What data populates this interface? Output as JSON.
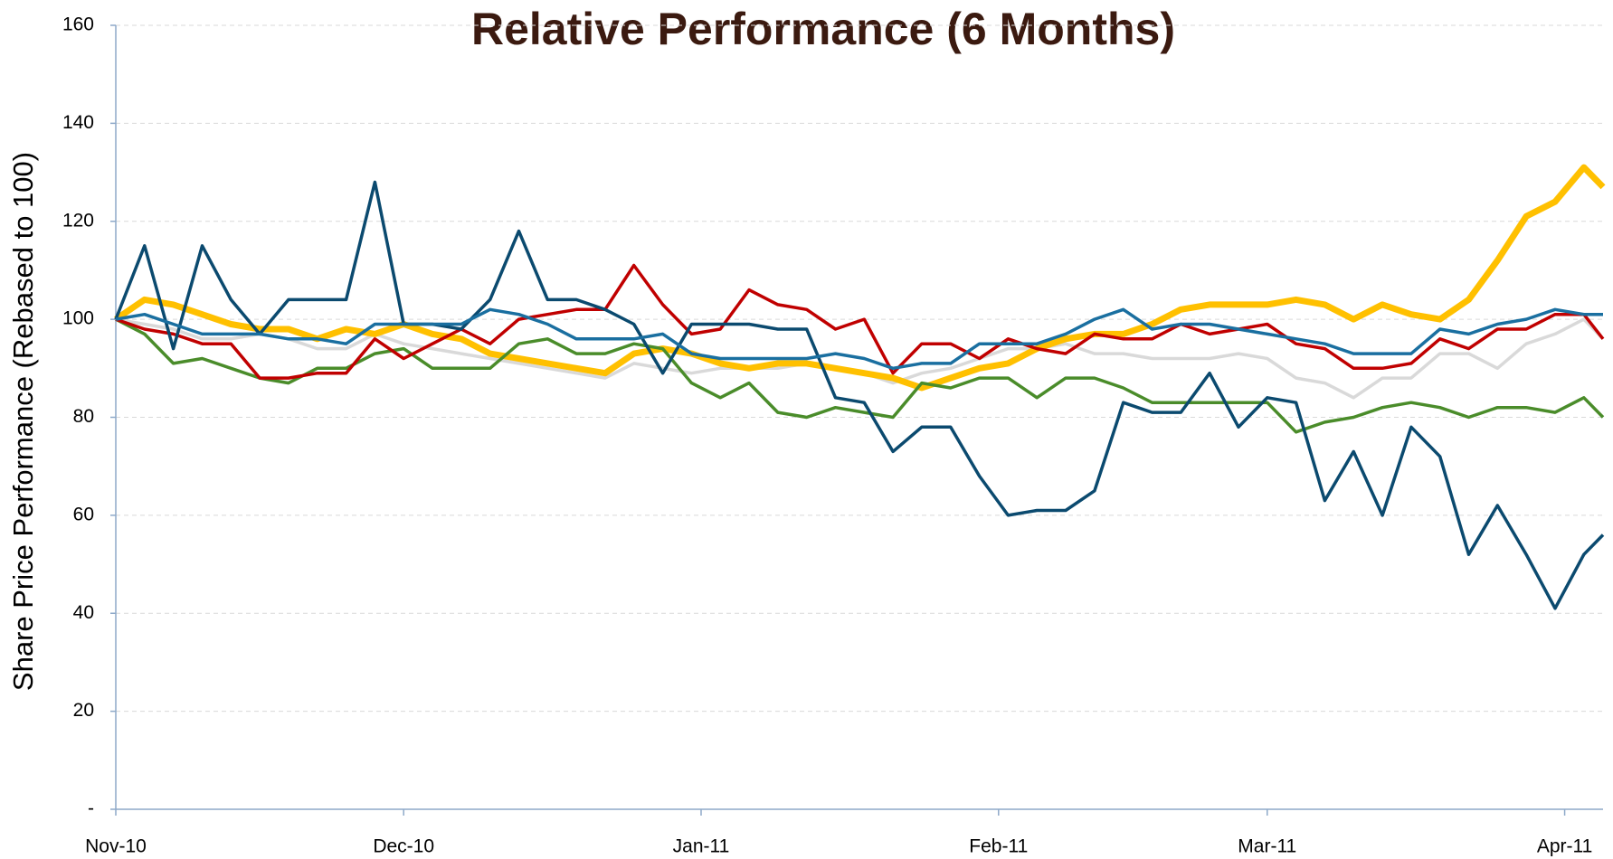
{
  "chart_data": {
    "type": "line",
    "title": "Relative Performance (6 Months)",
    "y_label": "Share Price Performance (Rebased to 100)",
    "x": [
      0,
      3,
      6,
      9,
      12,
      15,
      18,
      21,
      24,
      27,
      30,
      33,
      36,
      39,
      42,
      45,
      48,
      51,
      54,
      57,
      60,
      63,
      66,
      69,
      72,
      75,
      78,
      81,
      84,
      87,
      90,
      93,
      96,
      99,
      102,
      105,
      108,
      111,
      114,
      117,
      120,
      123,
      126,
      129,
      132,
      135,
      138,
      141,
      144,
      147,
      150,
      153,
      155
    ],
    "xlim": [
      0,
      155
    ],
    "xticks": [
      {
        "value": 0,
        "label": "Nov-10"
      },
      {
        "value": 30,
        "label": "Dec-10"
      },
      {
        "value": 61,
        "label": "Jan-11"
      },
      {
        "value": 92,
        "label": "Feb-11"
      },
      {
        "value": 120,
        "label": "Mar-11"
      },
      {
        "value": 151,
        "label": "Apr-11"
      }
    ],
    "ylim": [
      0,
      160
    ],
    "yticks": [
      {
        "value": 0,
        "label": "-"
      },
      20,
      40,
      60,
      80,
      100,
      120,
      140,
      160
    ],
    "grid": true,
    "series": [
      {
        "color": "#d9d9d9",
        "values": [
          100,
          99,
          98,
          96,
          96,
          97,
          96,
          94,
          94,
          97,
          95,
          94,
          93,
          92,
          91,
          90,
          89,
          88,
          91,
          90,
          89,
          90,
          90,
          90,
          91,
          90,
          89,
          87,
          89,
          90,
          92,
          94,
          94,
          95,
          93,
          93,
          92,
          92,
          92,
          93,
          92,
          88,
          87,
          84,
          88,
          88,
          93,
          93,
          90,
          95,
          97,
          100,
          96
        ]
      },
      {
        "color": "#ffc000",
        "values": [
          100,
          104,
          103,
          101,
          99,
          98,
          98,
          96,
          98,
          97,
          99,
          97,
          96,
          93,
          92,
          91,
          90,
          89,
          93,
          94,
          93,
          91,
          90,
          91,
          91,
          90,
          89,
          88,
          86,
          88,
          90,
          91,
          94,
          96,
          97,
          97,
          99,
          102,
          103,
          103,
          103,
          104,
          103,
          100,
          103,
          101,
          100,
          104,
          112,
          121,
          124,
          131,
          127
        ]
      },
      {
        "color": "#4a8c2a",
        "values": [
          100,
          97,
          91,
          92,
          90,
          88,
          87,
          90,
          90,
          93,
          94,
          90,
          90,
          90,
          95,
          96,
          93,
          93,
          95,
          94,
          87,
          84,
          87,
          81,
          80,
          82,
          81,
          80,
          87,
          86,
          88,
          88,
          84,
          88,
          88,
          86,
          83,
          83,
          83,
          83,
          83,
          77,
          79,
          80,
          82,
          83,
          82,
          80,
          82,
          82,
          81,
          84,
          80
        ]
      },
      {
        "color": "#c00000",
        "values": [
          100,
          98,
          97,
          95,
          95,
          88,
          88,
          89,
          89,
          96,
          92,
          95,
          98,
          95,
          100,
          101,
          102,
          102,
          111,
          103,
          97,
          98,
          106,
          103,
          102,
          98,
          100,
          89,
          95,
          95,
          92,
          96,
          94,
          93,
          97,
          96,
          96,
          99,
          97,
          98,
          99,
          95,
          94,
          90,
          90,
          91,
          96,
          94,
          98,
          98,
          101,
          101,
          96
        ]
      },
      {
        "color": "#0b4a6f",
        "values": [
          100,
          115,
          94,
          115,
          104,
          97,
          104,
          104,
          104,
          128,
          99,
          99,
          98,
          104,
          118,
          104,
          104,
          102,
          99,
          89,
          99,
          99,
          99,
          98,
          98,
          84,
          83,
          73,
          78,
          78,
          68,
          60,
          61,
          61,
          65,
          83,
          81,
          81,
          89,
          78,
          84,
          83,
          63,
          73,
          60,
          78,
          72,
          52,
          62,
          52,
          41,
          52,
          56
        ]
      },
      {
        "color": "#1a6fa0",
        "values": [
          100,
          101,
          99,
          97,
          97,
          97,
          96,
          96,
          95,
          99,
          99,
          99,
          99,
          102,
          101,
          99,
          96,
          96,
          96,
          97,
          93,
          92,
          92,
          92,
          92,
          93,
          92,
          90,
          91,
          91,
          95,
          95,
          95,
          97,
          100,
          102,
          98,
          99,
          99,
          98,
          97,
          96,
          95,
          93,
          93,
          93,
          98,
          97,
          99,
          100,
          102,
          101,
          101
        ]
      }
    ]
  }
}
